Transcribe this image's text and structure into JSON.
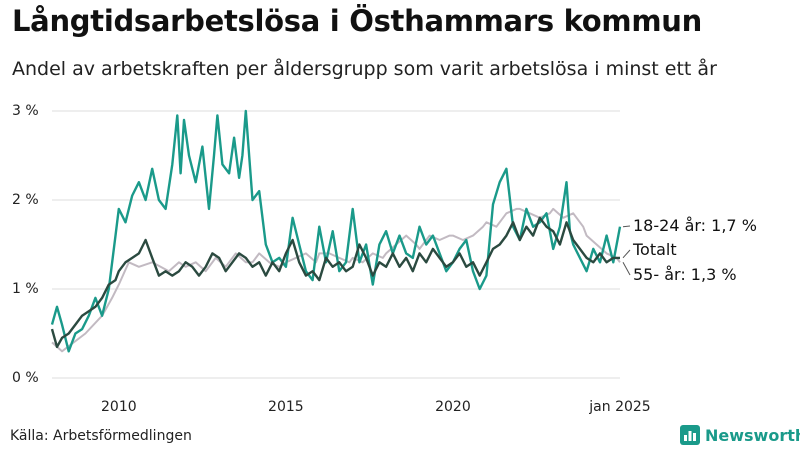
{
  "title": "Långtidsarbetslösa i Östhammars kommun",
  "subtitle": "Andel av arbetskraften per åldersgrupp som varit arbetslösa i minst ett år",
  "source": "Källa: Arbetsförmedlingen",
  "brand": "Newsworthy",
  "colors": {
    "young": "#1a9a8a",
    "total": "#2b4a40",
    "old": "#c2bac2",
    "grid": "#dcdcdc",
    "brand": "#1a9a8a"
  },
  "chart_data": {
    "type": "line",
    "title": "Långtidsarbetslösa i Östhammars kommun",
    "xlabel": "",
    "ylabel": "",
    "xlim": [
      2008.0,
      2025.0
    ],
    "ylim": [
      0,
      3
    ],
    "y_ticks": [
      {
        "value": 0,
        "label": "0 %"
      },
      {
        "value": 1,
        "label": "1 %"
      },
      {
        "value": 2,
        "label": "2 %"
      },
      {
        "value": 3,
        "label": "3 %"
      }
    ],
    "x_ticks": [
      {
        "value": 2010,
        "label": "2010"
      },
      {
        "value": 2015,
        "label": "2015"
      },
      {
        "value": 2020,
        "label": "2020"
      },
      {
        "value": 2025,
        "label": "jan 2025"
      }
    ],
    "series": [
      {
        "key": "old",
        "name": "55- år",
        "end_label": "55- år: 1,3 %",
        "color": "#c2bac2",
        "x": [
          2008.0,
          2008.3,
          2009.0,
          2009.5,
          2009.8,
          2010.0,
          2010.3,
          2010.6,
          2011.0,
          2011.5,
          2011.8,
          2012.0,
          2012.3,
          2012.6,
          2012.9,
          2013.2,
          2013.5,
          2013.8,
          2014.0,
          2014.2,
          2014.5,
          2014.8,
          2015.0,
          2015.3,
          2015.6,
          2015.9,
          2016.0,
          2016.3,
          2016.6,
          2016.9,
          2017.0,
          2017.3,
          2017.6,
          2017.9,
          2018.0,
          2018.3,
          2018.6,
          2018.9,
          2019.0,
          2019.3,
          2019.6,
          2019.9,
          2020.0,
          2020.3,
          2020.6,
          2020.9,
          2021.0,
          2021.3,
          2021.6,
          2021.9,
          2022.0,
          2022.3,
          2022.6,
          2022.9,
          2023.0,
          2023.3,
          2023.6,
          2023.9,
          2024.0,
          2024.3,
          2024.6,
          2024.9,
          2025.0
        ],
        "y": [
          0.4,
          0.3,
          0.5,
          0.7,
          0.9,
          1.05,
          1.3,
          1.25,
          1.3,
          1.2,
          1.3,
          1.25,
          1.3,
          1.2,
          1.35,
          1.25,
          1.4,
          1.3,
          1.3,
          1.4,
          1.3,
          1.25,
          1.3,
          1.35,
          1.4,
          1.3,
          1.4,
          1.4,
          1.35,
          1.3,
          1.35,
          1.3,
          1.4,
          1.35,
          1.4,
          1.5,
          1.6,
          1.5,
          1.45,
          1.6,
          1.55,
          1.6,
          1.6,
          1.55,
          1.6,
          1.7,
          1.75,
          1.7,
          1.85,
          1.9,
          1.9,
          1.85,
          1.8,
          1.85,
          1.9,
          1.8,
          1.85,
          1.7,
          1.6,
          1.5,
          1.4,
          1.35,
          1.3
        ]
      },
      {
        "key": "young",
        "name": "18-24 år",
        "end_label": "18-24 år: 1,7 %",
        "color": "#1a9a8a",
        "x": [
          2008.0,
          2008.15,
          2008.3,
          2008.5,
          2008.7,
          2008.9,
          2009.1,
          2009.3,
          2009.5,
          2009.7,
          2009.9,
          2010.0,
          2010.2,
          2010.4,
          2010.6,
          2010.8,
          2011.0,
          2011.2,
          2011.4,
          2011.6,
          2011.75,
          2011.85,
          2011.95,
          2012.1,
          2012.3,
          2012.5,
          2012.7,
          2012.85,
          2012.95,
          2013.1,
          2013.3,
          2013.45,
          2013.6,
          2013.7,
          2013.8,
          2014.0,
          2014.2,
          2014.4,
          2014.6,
          2014.8,
          2015.0,
          2015.2,
          2015.4,
          2015.6,
          2015.8,
          2016.0,
          2016.2,
          2016.4,
          2016.6,
          2016.8,
          2017.0,
          2017.2,
          2017.4,
          2017.6,
          2017.8,
          2018.0,
          2018.2,
          2018.4,
          2018.6,
          2018.8,
          2019.0,
          2019.2,
          2019.4,
          2019.6,
          2019.8,
          2020.0,
          2020.2,
          2020.4,
          2020.6,
          2020.8,
          2021.0,
          2021.2,
          2021.4,
          2021.6,
          2021.8,
          2022.0,
          2022.2,
          2022.4,
          2022.6,
          2022.8,
          2023.0,
          2023.2,
          2023.4,
          2023.5,
          2023.6,
          2023.8,
          2024.0,
          2024.2,
          2024.4,
          2024.6,
          2024.8,
          2025.0
        ],
        "y": [
          0.6,
          0.8,
          0.6,
          0.3,
          0.5,
          0.55,
          0.7,
          0.9,
          0.7,
          1.0,
          1.6,
          1.9,
          1.75,
          2.05,
          2.2,
          2.0,
          2.35,
          2.0,
          1.9,
          2.4,
          2.95,
          2.3,
          2.9,
          2.5,
          2.2,
          2.6,
          1.9,
          2.5,
          2.95,
          2.4,
          2.3,
          2.7,
          2.25,
          2.5,
          3.0,
          2.0,
          2.1,
          1.5,
          1.3,
          1.35,
          1.25,
          1.8,
          1.5,
          1.2,
          1.1,
          1.7,
          1.3,
          1.65,
          1.2,
          1.3,
          1.9,
          1.3,
          1.5,
          1.05,
          1.5,
          1.65,
          1.4,
          1.6,
          1.4,
          1.35,
          1.7,
          1.5,
          1.6,
          1.4,
          1.2,
          1.3,
          1.45,
          1.55,
          1.2,
          1.0,
          1.15,
          1.95,
          2.2,
          2.35,
          1.7,
          1.55,
          1.9,
          1.7,
          1.75,
          1.85,
          1.45,
          1.7,
          2.2,
          1.65,
          1.5,
          1.35,
          1.2,
          1.45,
          1.3,
          1.6,
          1.3,
          1.7
        ]
      },
      {
        "key": "total",
        "name": "Totalt",
        "end_label": "Totalt",
        "color": "#2b4a40",
        "x": [
          2008.0,
          2008.15,
          2008.3,
          2008.5,
          2008.7,
          2008.9,
          2009.1,
          2009.3,
          2009.5,
          2009.7,
          2009.9,
          2010.0,
          2010.2,
          2010.4,
          2010.6,
          2010.8,
          2011.0,
          2011.2,
          2011.4,
          2011.6,
          2011.8,
          2012.0,
          2012.2,
          2012.4,
          2012.6,
          2012.8,
          2013.0,
          2013.2,
          2013.4,
          2013.6,
          2013.8,
          2014.0,
          2014.2,
          2014.4,
          2014.6,
          2014.8,
          2015.0,
          2015.2,
          2015.4,
          2015.6,
          2015.8,
          2016.0,
          2016.2,
          2016.4,
          2016.6,
          2016.8,
          2017.0,
          2017.2,
          2017.4,
          2017.6,
          2017.8,
          2018.0,
          2018.2,
          2018.4,
          2018.6,
          2018.8,
          2019.0,
          2019.2,
          2019.4,
          2019.6,
          2019.8,
          2020.0,
          2020.2,
          2020.4,
          2020.6,
          2020.8,
          2021.0,
          2021.2,
          2021.4,
          2021.6,
          2021.8,
          2022.0,
          2022.2,
          2022.4,
          2022.6,
          2022.8,
          2023.0,
          2023.2,
          2023.4,
          2023.6,
          2023.8,
          2024.0,
          2024.2,
          2024.4,
          2024.6,
          2024.8,
          2025.0
        ],
        "y": [
          0.55,
          0.35,
          0.45,
          0.5,
          0.6,
          0.7,
          0.75,
          0.8,
          0.9,
          1.05,
          1.1,
          1.2,
          1.3,
          1.35,
          1.4,
          1.55,
          1.35,
          1.15,
          1.2,
          1.15,
          1.2,
          1.3,
          1.25,
          1.15,
          1.25,
          1.4,
          1.35,
          1.2,
          1.3,
          1.4,
          1.35,
          1.25,
          1.3,
          1.15,
          1.3,
          1.2,
          1.4,
          1.55,
          1.3,
          1.15,
          1.2,
          1.1,
          1.35,
          1.25,
          1.3,
          1.2,
          1.25,
          1.5,
          1.35,
          1.15,
          1.3,
          1.25,
          1.4,
          1.25,
          1.35,
          1.2,
          1.4,
          1.3,
          1.45,
          1.35,
          1.25,
          1.3,
          1.4,
          1.25,
          1.3,
          1.15,
          1.3,
          1.45,
          1.5,
          1.6,
          1.75,
          1.55,
          1.7,
          1.6,
          1.8,
          1.7,
          1.65,
          1.5,
          1.75,
          1.55,
          1.45,
          1.35,
          1.3,
          1.4,
          1.3,
          1.35,
          1.35
        ]
      }
    ]
  }
}
